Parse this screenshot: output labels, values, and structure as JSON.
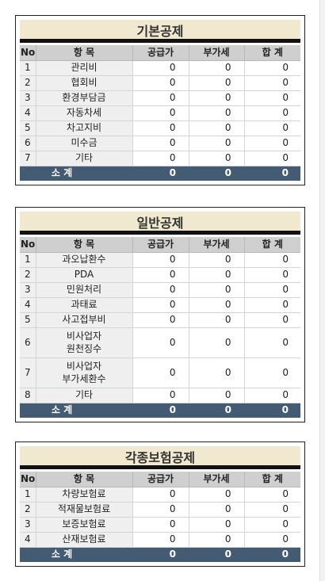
{
  "headers": {
    "no": "No",
    "item": "항 목",
    "supply": "공급가",
    "vat": "부가세",
    "total": "합 계"
  },
  "sections": [
    {
      "title": "기본공제",
      "rows": [
        {
          "no": "1",
          "item": "관리비",
          "supply": "0",
          "vat": "0",
          "total": "0"
        },
        {
          "no": "2",
          "item": "협회비",
          "supply": "0",
          "vat": "0",
          "total": "0"
        },
        {
          "no": "3",
          "item": "환경부담금",
          "supply": "0",
          "vat": "0",
          "total": "0"
        },
        {
          "no": "4",
          "item": "자동차세",
          "supply": "0",
          "vat": "0",
          "total": "0"
        },
        {
          "no": "5",
          "item": "차고지비",
          "supply": "0",
          "vat": "0",
          "total": "0"
        },
        {
          "no": "6",
          "item": "미수금",
          "supply": "0",
          "vat": "0",
          "total": "0"
        },
        {
          "no": "7",
          "item": "기타",
          "supply": "0",
          "vat": "0",
          "total": "0"
        }
      ],
      "subtotal": {
        "label": "소 계",
        "supply": "0",
        "vat": "0",
        "total": "0"
      }
    },
    {
      "title": "일반공제",
      "rows": [
        {
          "no": "1",
          "item": "과오납환수",
          "supply": "0",
          "vat": "0",
          "total": "0"
        },
        {
          "no": "2",
          "item": "PDA",
          "supply": "0",
          "vat": "0",
          "total": "0"
        },
        {
          "no": "3",
          "item": "민원처리",
          "supply": "0",
          "vat": "0",
          "total": "0"
        },
        {
          "no": "4",
          "item": "과태료",
          "supply": "0",
          "vat": "0",
          "total": "0"
        },
        {
          "no": "5",
          "item": "사고접부비",
          "supply": "0",
          "vat": "0",
          "total": "0"
        },
        {
          "no": "6",
          "item_line1": "비사업자",
          "item_line2": "원천징수",
          "supply": "0",
          "vat": "0",
          "total": "0"
        },
        {
          "no": "7",
          "item_line1": "비사업자",
          "item_line2": "부가세환수",
          "supply": "0",
          "vat": "0",
          "total": "0"
        },
        {
          "no": "8",
          "item": "기타",
          "supply": "0",
          "vat": "0",
          "total": "0"
        }
      ],
      "subtotal": {
        "label": "소 계",
        "supply": "0",
        "vat": "0",
        "total": "0"
      }
    },
    {
      "title": "각종보험공제",
      "rows": [
        {
          "no": "1",
          "item": "차량보험료",
          "supply": "0",
          "vat": "0",
          "total": "0"
        },
        {
          "no": "2",
          "item": "적재물보험료",
          "supply": "0",
          "vat": "0",
          "total": "0"
        },
        {
          "no": "3",
          "item": "보증보험료",
          "supply": "0",
          "vat": "0",
          "total": "0"
        },
        {
          "no": "4",
          "item": "산재보험료",
          "supply": "0",
          "vat": "0",
          "total": "0"
        }
      ],
      "subtotal": {
        "label": "소 계",
        "supply": "0",
        "vat": "0",
        "total": "0"
      }
    }
  ]
}
